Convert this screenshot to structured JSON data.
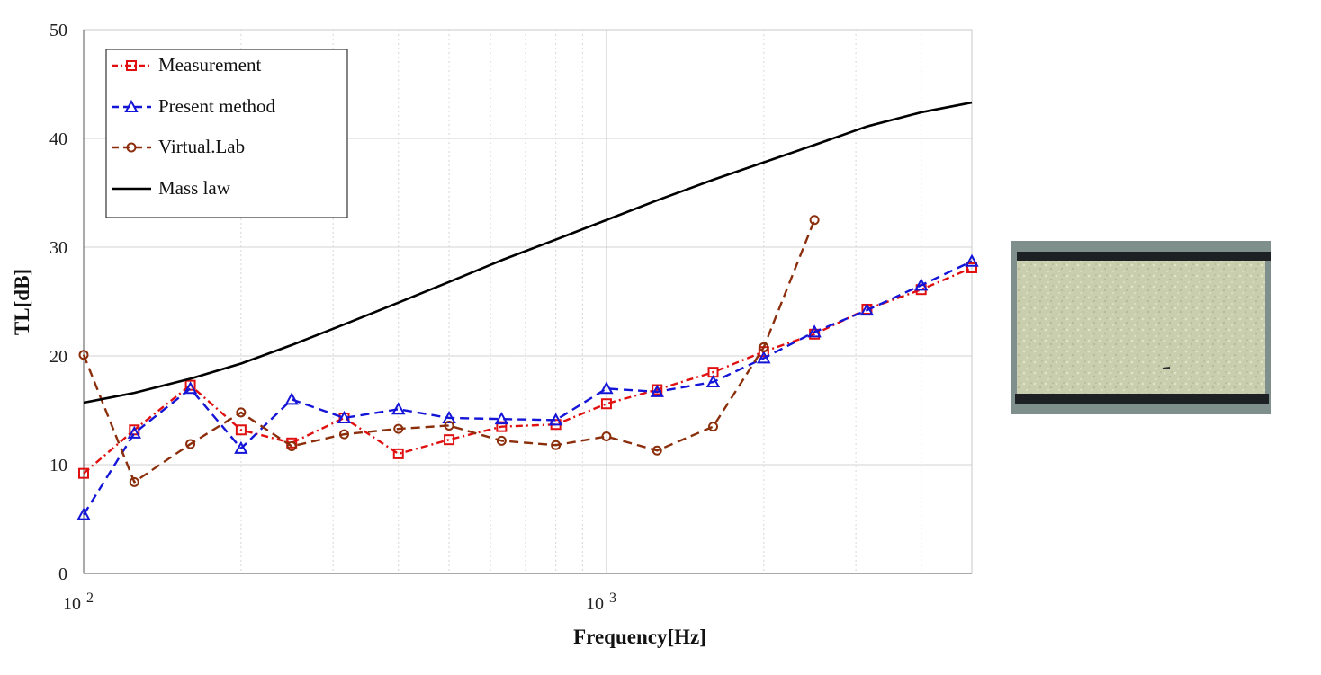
{
  "chart_data": {
    "type": "line",
    "title": "",
    "xlabel": "Frequency[Hz]",
    "ylabel": "TL[dB]",
    "xscale": "log",
    "xlim": [
      100,
      5000
    ],
    "ylim": [
      0,
      50
    ],
    "x_major_ticks": [
      {
        "value": 100,
        "base": "10",
        "exp": "2"
      },
      {
        "value": 1000,
        "base": "10",
        "exp": "3"
      }
    ],
    "x_minor_ticks": [
      200,
      300,
      400,
      500,
      600,
      700,
      800,
      900,
      2000,
      3000,
      4000
    ],
    "y_ticks": [
      0,
      10,
      20,
      30,
      40,
      50
    ],
    "y_tick_labels": [
      "0",
      "10",
      "20",
      "30",
      "40",
      "50"
    ],
    "grid": true,
    "legend_position": "top-left",
    "series": [
      {
        "name": "Measurement",
        "color": "#e01010",
        "dash": "dash-dot",
        "marker": "square",
        "x": [
          100,
          125,
          160,
          200,
          250,
          315,
          400,
          500,
          630,
          800,
          1000,
          1250,
          1600,
          2000,
          2500,
          3150,
          4000,
          5000
        ],
        "y": [
          9.2,
          13.2,
          17.3,
          13.2,
          12.0,
          14.3,
          11.0,
          12.3,
          13.5,
          13.7,
          15.6,
          16.9,
          18.5,
          20.4,
          22.0,
          24.3,
          26.1,
          28.1
        ]
      },
      {
        "name": "Present method",
        "color": "#1515d8",
        "dash": "dashed",
        "marker": "triangle",
        "x": [
          100,
          125,
          160,
          200,
          250,
          315,
          400,
          500,
          630,
          800,
          1000,
          1250,
          1600,
          2000,
          2500,
          3150,
          4000,
          5000
        ],
        "y": [
          5.4,
          12.9,
          17.0,
          11.5,
          16.0,
          14.3,
          15.1,
          14.3,
          14.2,
          14.1,
          17.0,
          16.7,
          17.6,
          19.8,
          22.2,
          24.2,
          26.5,
          28.7
        ]
      },
      {
        "name": "Virtual.Lab",
        "color": "#8b2e0b",
        "dash": "dashed",
        "marker": "circle",
        "x": [
          100,
          125,
          160,
          200,
          250,
          315,
          400,
          500,
          630,
          800,
          1000,
          1250,
          1600,
          2000,
          2500
        ],
        "y": [
          20.1,
          8.4,
          11.9,
          14.8,
          11.7,
          12.8,
          13.3,
          13.6,
          12.2,
          11.8,
          12.6,
          11.3,
          13.5,
          20.8,
          32.5
        ]
      },
      {
        "name": "Mass law",
        "color": "#000000",
        "dash": "solid",
        "marker": "none",
        "x": [
          100,
          125,
          160,
          200,
          250,
          315,
          400,
          500,
          630,
          800,
          1000,
          1250,
          1600,
          2000,
          2500,
          3150,
          4000,
          5000
        ],
        "y": [
          15.7,
          16.6,
          17.9,
          19.3,
          21.0,
          22.9,
          24.9,
          26.8,
          28.8,
          30.7,
          32.5,
          34.3,
          36.2,
          37.8,
          39.4,
          41.1,
          42.4,
          43.3
        ]
      }
    ]
  }
}
